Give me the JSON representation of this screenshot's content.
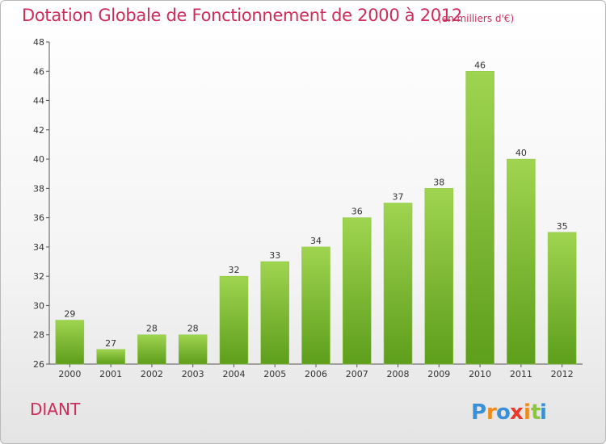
{
  "header": {
    "title": "Dotation Globale de Fonctionnement de 2000 à 2012",
    "subtitle": "(en milliers d'€)"
  },
  "commune": "DIANT",
  "brand": {
    "name": "Proxiti",
    "letters": [
      {
        "ch": "P",
        "color": "#3a8fd6"
      },
      {
        "ch": "r",
        "color": "#f08a1c"
      },
      {
        "ch": "o",
        "color": "#3a8fd6"
      },
      {
        "ch": "x",
        "color": "#e63a2e"
      },
      {
        "ch": "i",
        "color": "#f08a1c"
      },
      {
        "ch": "t",
        "color": "#8cc63f"
      },
      {
        "ch": "i",
        "color": "#3a8fd6"
      }
    ]
  },
  "colors": {
    "accent": "#cc2d5a",
    "bar_top": "#9fd450",
    "bar_bottom": "#5d9e1b"
  },
  "chart_data": {
    "type": "bar",
    "categories": [
      "2000",
      "2001",
      "2002",
      "2003",
      "2004",
      "2005",
      "2006",
      "2007",
      "2008",
      "2009",
      "2010",
      "2011",
      "2012"
    ],
    "values": [
      29,
      27,
      28,
      28,
      32,
      33,
      34,
      36,
      37,
      38,
      46,
      40,
      35
    ],
    "ylim": [
      26,
      48
    ],
    "yticks": [
      26,
      28,
      30,
      32,
      34,
      36,
      38,
      40,
      42,
      44,
      46,
      48
    ],
    "grid": false,
    "legend": "none"
  }
}
